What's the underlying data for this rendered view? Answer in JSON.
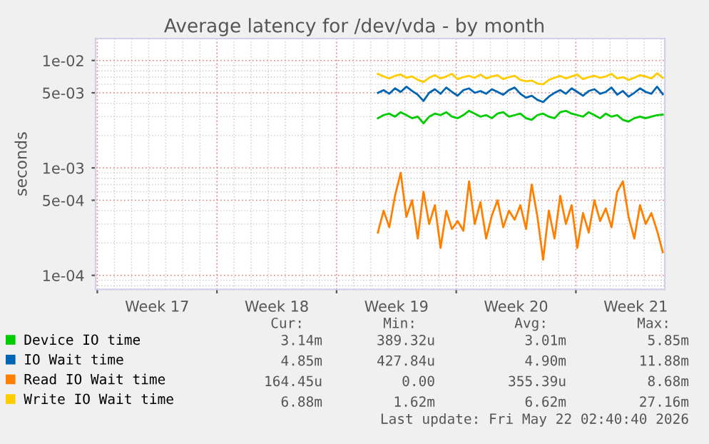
{
  "chart_data": {
    "type": "line",
    "title": "Average latency for /dev/vda - by month",
    "ylabel": "seconds",
    "log": "y",
    "grid": true,
    "legend": "bottom",
    "marker": "none",
    "line_style": "solid",
    "ylim": [
      7.4e-05,
      0.016
    ],
    "yticks": [
      {
        "value": 0.0001,
        "label": "1e-04"
      },
      {
        "value": 0.0005,
        "label": "5e-04"
      },
      {
        "value": 0.001,
        "label": "1e-03"
      },
      {
        "value": 0.005,
        "label": "5e-03"
      },
      {
        "value": 0.01,
        "label": "1e-02"
      }
    ],
    "xlim": [
      "2026-04-18T21:36",
      "2026-05-22T04:48"
    ],
    "xticks": [
      {
        "value": "2026-04-19",
        "label": null
      },
      {
        "value": "2026-04-22T12:00",
        "label": "Week 17"
      },
      {
        "value": "2026-04-26",
        "label": null
      },
      {
        "value": "2026-04-29T12:00",
        "label": "Week 18"
      },
      {
        "value": "2026-05-03",
        "label": null
      },
      {
        "value": "2026-05-06T12:00",
        "label": "Week 19"
      },
      {
        "value": "2026-05-10",
        "label": null
      },
      {
        "value": "2026-05-13T12:00",
        "label": "Week 20"
      },
      {
        "value": "2026-05-17",
        "label": null
      },
      {
        "value": "2026-05-20T12:00",
        "label": "Week 21"
      }
    ],
    "x": [
      "2026-05-05T10:00",
      "2026-05-05T18:00",
      "2026-05-06T02:00",
      "2026-05-06T10:00",
      "2026-05-06T18:00",
      "2026-05-07T02:00",
      "2026-05-07T10:00",
      "2026-05-07T18:00",
      "2026-05-08T02:00",
      "2026-05-08T10:00",
      "2026-05-08T18:00",
      "2026-05-09T02:00",
      "2026-05-09T10:00",
      "2026-05-09T18:00",
      "2026-05-10T02:00",
      "2026-05-10T10:00",
      "2026-05-10T18:00",
      "2026-05-11T02:00",
      "2026-05-11T10:00",
      "2026-05-11T18:00",
      "2026-05-12T02:00",
      "2026-05-12T10:00",
      "2026-05-12T18:00",
      "2026-05-13T02:00",
      "2026-05-13T10:00",
      "2026-05-13T18:00",
      "2026-05-14T02:00",
      "2026-05-14T10:00",
      "2026-05-14T18:00",
      "2026-05-15T02:00",
      "2026-05-15T10:00",
      "2026-05-15T18:00",
      "2026-05-16T02:00",
      "2026-05-16T10:00",
      "2026-05-16T18:00",
      "2026-05-17T02:00",
      "2026-05-17T10:00",
      "2026-05-17T18:00",
      "2026-05-18T02:00",
      "2026-05-18T10:00",
      "2026-05-18T18:00",
      "2026-05-19T02:00",
      "2026-05-19T10:00",
      "2026-05-19T18:00",
      "2026-05-20T02:00",
      "2026-05-20T10:00",
      "2026-05-20T18:00",
      "2026-05-21T02:00",
      "2026-05-21T10:00",
      "2026-05-21T18:00",
      "2026-05-22T02:00"
    ],
    "series": [
      {
        "name": "Device IO time",
        "color": "#00cc00",
        "values": [
          0.0029,
          0.0031,
          0.0032,
          0.003,
          0.0033,
          0.0031,
          0.0029,
          0.003,
          0.0026,
          0.003,
          0.0032,
          0.0031,
          0.0033,
          0.003,
          0.0029,
          0.0031,
          0.0034,
          0.0032,
          0.003,
          0.0031,
          0.0029,
          0.0032,
          0.0033,
          0.003,
          0.0031,
          0.0032,
          0.0029,
          0.0028,
          0.0031,
          0.0032,
          0.003,
          0.0029,
          0.0033,
          0.0034,
          0.0032,
          0.0031,
          0.003,
          0.0033,
          0.0031,
          0.0029,
          0.0032,
          0.003,
          0.0031,
          0.0028,
          0.0027,
          0.0029,
          0.003,
          0.0029,
          0.003,
          0.0031,
          0.00314
        ]
      },
      {
        "name": "IO Wait time",
        "color": "#0066b3",
        "values": [
          0.005,
          0.0053,
          0.0049,
          0.0055,
          0.0051,
          0.0057,
          0.0052,
          0.0048,
          0.0042,
          0.005,
          0.0054,
          0.0049,
          0.0056,
          0.0051,
          0.0047,
          0.0053,
          0.0055,
          0.005,
          0.0052,
          0.0049,
          0.0054,
          0.0051,
          0.0048,
          0.0053,
          0.0056,
          0.0049,
          0.0045,
          0.0047,
          0.0043,
          0.0041,
          0.0046,
          0.005,
          0.0053,
          0.0049,
          0.0055,
          0.0051,
          0.0047,
          0.0052,
          0.0054,
          0.0049,
          0.0051,
          0.0056,
          0.0048,
          0.0052,
          0.0046,
          0.005,
          0.0055,
          0.0051,
          0.0049,
          0.0057,
          0.00485
        ]
      },
      {
        "name": "Read IO Wait time",
        "color": "#ff8000",
        "values": [
          0.00025,
          0.0004,
          0.00028,
          0.00055,
          0.0009,
          0.00035,
          0.0005,
          0.00022,
          0.0006,
          0.0003,
          0.00045,
          0.00018,
          0.0004,
          0.00027,
          0.00032,
          0.00026,
          0.00075,
          0.0003,
          0.00048,
          0.00022,
          0.00036,
          0.0005,
          0.00028,
          0.0004,
          0.00033,
          0.00045,
          0.00027,
          0.0007,
          0.00035,
          0.00014,
          0.0004,
          0.00022,
          0.00055,
          0.0003,
          0.00045,
          0.00018,
          0.00038,
          0.00025,
          0.0005,
          0.00032,
          0.00042,
          0.00028,
          0.0006,
          0.00075,
          0.00035,
          0.00022,
          0.00045,
          0.0003,
          0.00038,
          0.00026,
          0.000164
        ]
      },
      {
        "name": "Write IO Wait time",
        "color": "#ffcc00",
        "values": [
          0.0075,
          0.0071,
          0.0068,
          0.0072,
          0.0074,
          0.0069,
          0.0071,
          0.0066,
          0.0063,
          0.0069,
          0.0073,
          0.0068,
          0.0071,
          0.0075,
          0.0067,
          0.007,
          0.0072,
          0.0069,
          0.0074,
          0.0068,
          0.0071,
          0.0073,
          0.0067,
          0.007,
          0.0072,
          0.0066,
          0.0064,
          0.0065,
          0.0061,
          0.006,
          0.0066,
          0.0069,
          0.0072,
          0.0068,
          0.0071,
          0.0074,
          0.0067,
          0.007,
          0.0072,
          0.0069,
          0.0071,
          0.0075,
          0.0068,
          0.007,
          0.0066,
          0.0069,
          0.0073,
          0.0071,
          0.0068,
          0.0076,
          0.00688
        ]
      }
    ],
    "annotations": [
      "Cur:",
      "Min:",
      "Avg:",
      "Max:",
      "3.14m",
      "389.32u",
      "3.01m",
      "5.85m",
      "4.85m",
      "427.84u",
      "4.90m",
      "11.88m",
      "164.45u",
      "0.00",
      "355.39u",
      "8.68m",
      "6.88m",
      "1.62m",
      "6.62m",
      "27.16m",
      "Last update: Fri May 22 02:40:40 2026"
    ]
  }
}
